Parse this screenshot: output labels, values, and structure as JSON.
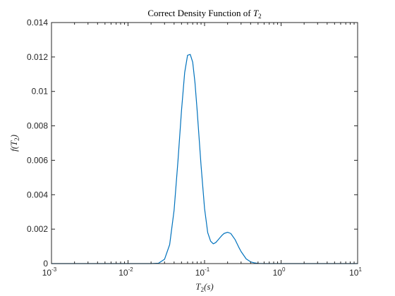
{
  "chart_data": {
    "type": "line",
    "title_prefix": "Correct Density Function of ",
    "title_var": "T",
    "title_sub": "2",
    "xlabel_var": "T",
    "xlabel_sub": "2",
    "xlabel_suffix": "(s)",
    "ylabel_prefix": "f(",
    "ylabel_var": "T",
    "ylabel_sub": "2",
    "ylabel_suffix": ")",
    "xscale": "log",
    "xlim": [
      0.001,
      10
    ],
    "ylim": [
      0,
      0.014
    ],
    "xticks": [
      {
        "value": 0.001,
        "base": "10",
        "exp": "-3"
      },
      {
        "value": 0.01,
        "base": "10",
        "exp": "-2"
      },
      {
        "value": 0.1,
        "base": "10",
        "exp": "-1"
      },
      {
        "value": 1,
        "base": "10",
        "exp": "0"
      },
      {
        "value": 10,
        "base": "10",
        "exp": "1"
      }
    ],
    "yticks": [
      {
        "value": 0,
        "label": "0"
      },
      {
        "value": 0.002,
        "label": "0.002"
      },
      {
        "value": 0.004,
        "label": "0.004"
      },
      {
        "value": 0.006,
        "label": "0.006"
      },
      {
        "value": 0.008,
        "label": "0.008"
      },
      {
        "value": 0.01,
        "label": "0.01"
      },
      {
        "value": 0.012,
        "label": "0.012"
      },
      {
        "value": 0.014,
        "label": "0.014"
      }
    ],
    "grid": false,
    "line_color": "#0072BD",
    "series": [
      {
        "x": [
          0.001,
          0.005,
          0.01,
          0.02,
          0.025,
          0.03,
          0.035,
          0.04,
          0.045,
          0.05,
          0.055,
          0.06,
          0.065,
          0.07,
          0.075,
          0.08,
          0.09,
          0.1,
          0.11,
          0.12,
          0.13,
          0.14,
          0.15,
          0.16,
          0.17,
          0.18,
          0.2,
          0.22,
          0.25,
          0.28,
          0.3,
          0.35,
          0.4,
          0.45,
          0.5,
          0.6,
          0.8,
          1,
          2,
          5,
          10
        ],
        "y": [
          0,
          0,
          0,
          0,
          2e-05,
          0.00025,
          0.0011,
          0.0031,
          0.006,
          0.0089,
          0.0111,
          0.0121,
          0.01215,
          0.0117,
          0.0105,
          0.0089,
          0.0057,
          0.0032,
          0.0018,
          0.0013,
          0.00115,
          0.00122,
          0.00137,
          0.00152,
          0.00165,
          0.00175,
          0.00182,
          0.00175,
          0.0014,
          0.00095,
          0.0007,
          0.00027,
          0.0001,
          4e-05,
          1e-05,
          0,
          0,
          0,
          0,
          0,
          0
        ]
      }
    ]
  }
}
